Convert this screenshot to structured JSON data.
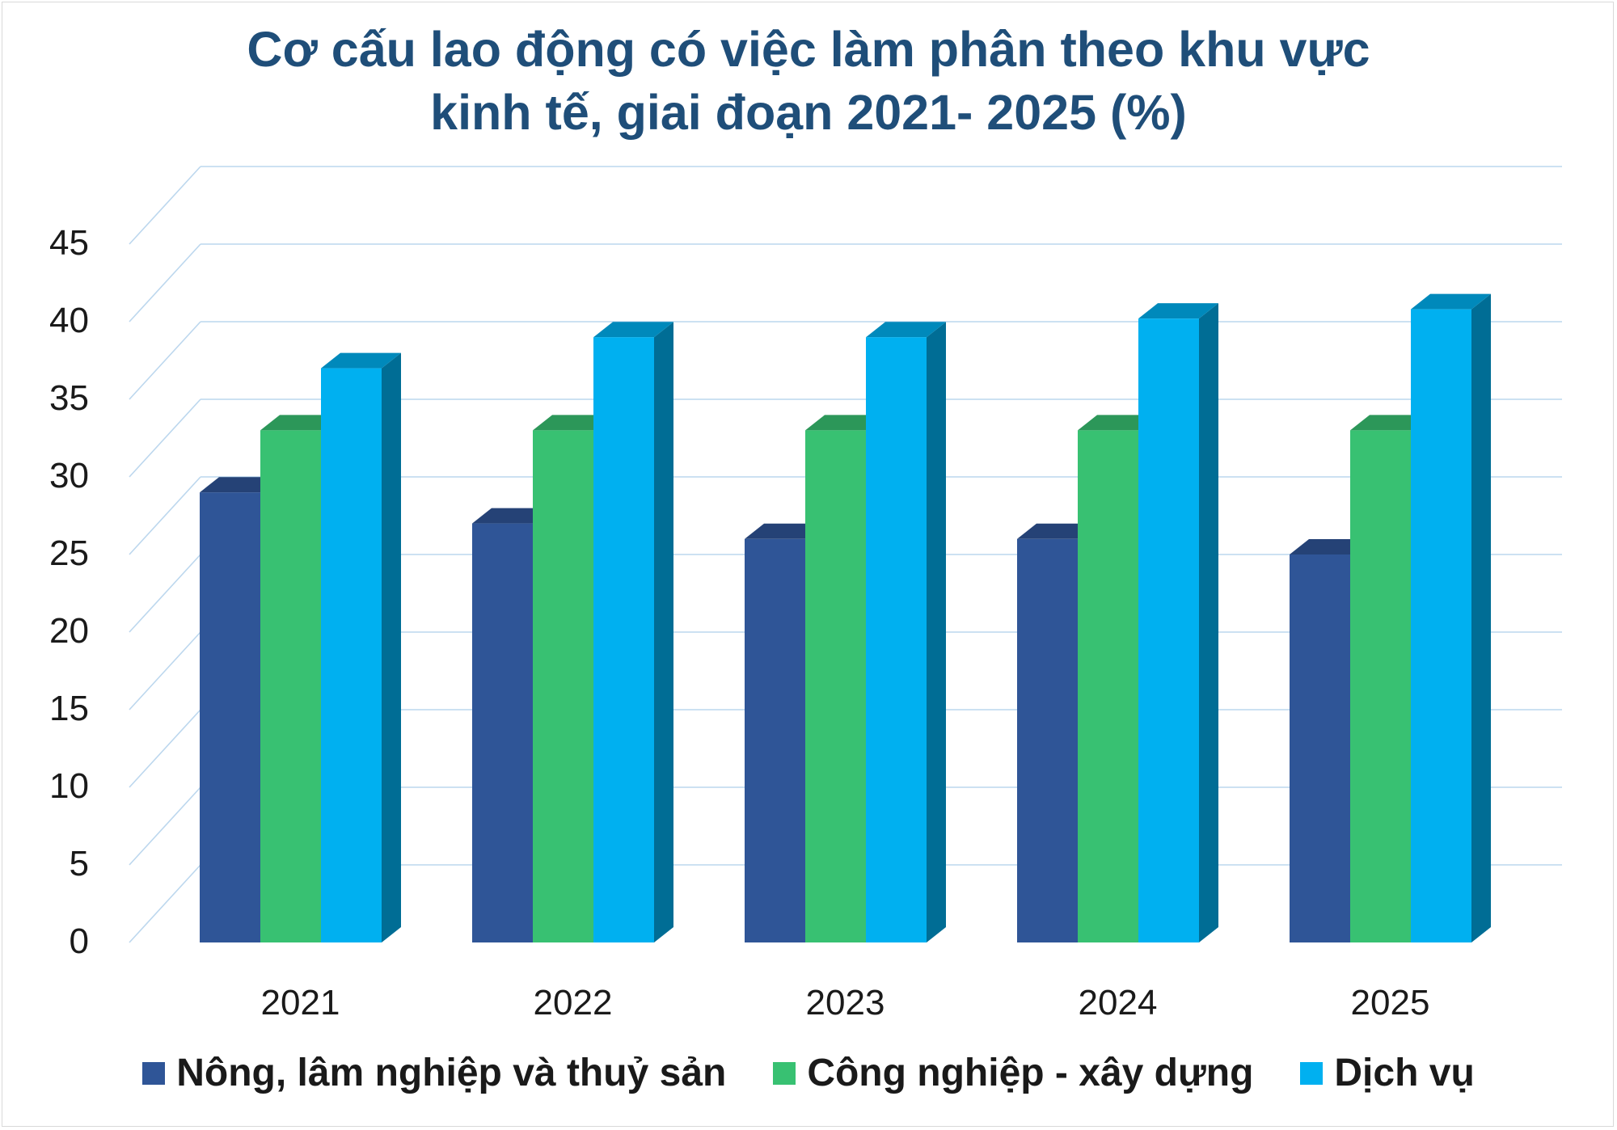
{
  "chart_data": {
    "type": "bar",
    "title_lines": [
      "Cơ cấu lao động có việc làm phân theo khu vực",
      "kinh tế, giai đoạn 2021- 2025 (%)"
    ],
    "categories": [
      "2021",
      "2022",
      "2023",
      "2024",
      "2025"
    ],
    "series": [
      {
        "name": "Nông, lâm nghiệp và thuỷ sản",
        "color": "#2f5597",
        "values": [
          29,
          27,
          26,
          26,
          25
        ]
      },
      {
        "name": "Công nghiệp - xây dựng",
        "color": "#38c172",
        "values": [
          33,
          33,
          33,
          33,
          33
        ]
      },
      {
        "name": "Dịch vụ",
        "color": "#00b0f0",
        "values": [
          37,
          39,
          39,
          40.2,
          40.8
        ]
      }
    ],
    "yticks": [
      "0",
      "5",
      "10",
      "15",
      "20",
      "25",
      "30",
      "35",
      "40",
      "45"
    ],
    "ylim": [
      0,
      45
    ],
    "grid": true,
    "legend_position": "bottom",
    "style": "3d-clustered-column"
  }
}
